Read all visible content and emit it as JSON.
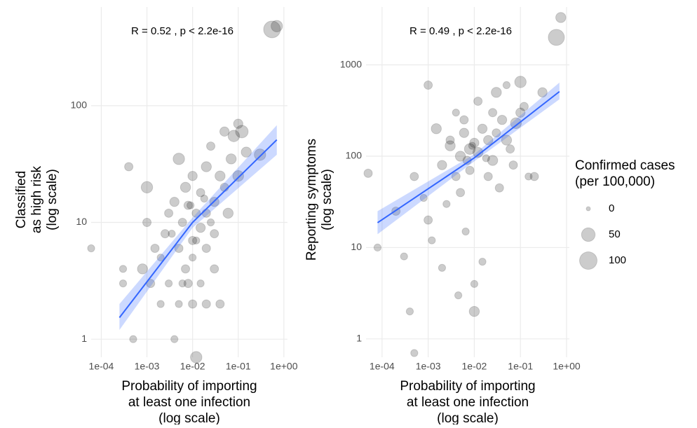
{
  "chart_data": [
    {
      "type": "scatter",
      "annotation": "R = 0.52 , p < 2.2e-16",
      "xlabel": [
        "Probability of importing",
        "at least one infection",
        "(log scale)"
      ],
      "ylabel": [
        "Classified",
        "as high risk",
        "(log scale)"
      ],
      "xscale": "log",
      "yscale": "log",
      "grid": true,
      "xlim": [
        6e-05,
        1.2
      ],
      "ylim": [
        0.7,
        700
      ],
      "xticks": [
        {
          "value": 0.0001,
          "label": "1e-04"
        },
        {
          "value": 0.001,
          "label": "1e-03"
        },
        {
          "value": 0.01,
          "label": "1e-02"
        },
        {
          "value": 0.1,
          "label": "1e-01"
        },
        {
          "value": 1,
          "label": "1e+00"
        }
      ],
      "yticks": [
        1,
        10,
        100
      ],
      "color": "#000000",
      "fit": {
        "color": "#3366ff",
        "x": [
          0.00025,
          0.01,
          0.7
        ],
        "y": [
          1.53,
          10,
          51
        ],
        "lower": [
          1.2,
          9,
          38
        ],
        "upper": [
          2.0,
          11,
          68
        ]
      },
      "x": [
        6e-05,
        0.0003,
        0.0004,
        0.0003,
        0.0005,
        0.0008,
        0.001,
        0.001,
        0.0012,
        0.0015,
        0.002,
        0.002,
        0.0025,
        0.003,
        0.003,
        0.004,
        0.004,
        0.005,
        0.005,
        0.005,
        0.006,
        0.007,
        0.007,
        0.008,
        0.008,
        0.01,
        0.01,
        0.01,
        0.01,
        0.012,
        0.012,
        0.015,
        0.015,
        0.015,
        0.02,
        0.02,
        0.02,
        0.02,
        0.025,
        0.03,
        0.03,
        0.03,
        0.04,
        0.05,
        0.05,
        0.06,
        0.07,
        0.08,
        0.1,
        0.1,
        0.12,
        0.15,
        0.3,
        0.55,
        0.7,
        0.012,
        0.006,
        0.009,
        0.025,
        0.04,
        0.018,
        0.0035
      ],
      "y": [
        6,
        3,
        30,
        4,
        1,
        4,
        20,
        10,
        3,
        6,
        5,
        2,
        8,
        12,
        3,
        15,
        1,
        35,
        6,
        2,
        10,
        20,
        4,
        14,
        3,
        25,
        7,
        5,
        2,
        12,
        0.7,
        18,
        9,
        3,
        30,
        12,
        6,
        2,
        45,
        15,
        8,
        4,
        25,
        20,
        60,
        12,
        35,
        55,
        70,
        25,
        60,
        40,
        38,
        450,
        480,
        7,
        3,
        14,
        10,
        2,
        16,
        8
      ],
      "sizes": [
        5,
        5,
        10,
        5,
        5,
        20,
        30,
        10,
        10,
        10,
        5,
        5,
        10,
        10,
        5,
        15,
        5,
        30,
        10,
        5,
        10,
        20,
        10,
        10,
        10,
        15,
        10,
        5,
        10,
        10,
        30,
        10,
        15,
        5,
        20,
        10,
        10,
        10,
        10,
        15,
        10,
        10,
        20,
        10,
        15,
        20,
        20,
        30,
        15,
        25,
        40,
        20,
        30,
        90,
        30,
        5,
        5,
        5,
        5,
        10,
        5,
        5
      ]
    },
    {
      "type": "scatter",
      "annotation": "R = 0.49 , p < 2.2e-16",
      "xlabel": [
        "Probability of importing",
        "at least one infection",
        "(log scale)"
      ],
      "ylabel": [
        "Reporting symptoms",
        "(log scale)"
      ],
      "xscale": "log",
      "yscale": "log",
      "grid": true,
      "xlim": [
        4.5e-05,
        1.15
      ],
      "ylim": [
        0.63,
        4300
      ],
      "xticks": [
        {
          "value": 0.0001,
          "label": "1e-04"
        },
        {
          "value": 0.001,
          "label": "1e-03"
        },
        {
          "value": 0.01,
          "label": "1e-02"
        },
        {
          "value": 0.1,
          "label": "1e-01"
        },
        {
          "value": 1,
          "label": "1e+00"
        }
      ],
      "yticks": [
        1,
        10,
        100,
        1000
      ],
      "color": "#000000",
      "fit": {
        "color": "#3366ff",
        "x": [
          8e-05,
          0.01,
          0.7
        ],
        "y": [
          18.7,
          96,
          510
        ],
        "lower": [
          14,
          88,
          420
        ],
        "upper": [
          25,
          105,
          640
        ]
      },
      "x": [
        5e-05,
        8e-05,
        0.0002,
        0.0003,
        0.0004,
        0.0005,
        0.0008,
        0.001,
        0.001,
        0.0012,
        0.0015,
        0.002,
        0.002,
        0.003,
        0.003,
        0.004,
        0.004,
        0.005,
        0.005,
        0.006,
        0.006,
        0.007,
        0.008,
        0.008,
        0.01,
        0.01,
        0.01,
        0.012,
        0.012,
        0.015,
        0.015,
        0.02,
        0.02,
        0.025,
        0.025,
        0.03,
        0.03,
        0.04,
        0.05,
        0.05,
        0.06,
        0.07,
        0.08,
        0.1,
        0.1,
        0.12,
        0.15,
        0.2,
        0.3,
        0.6,
        0.75,
        0.0045,
        0.009,
        0.018,
        0.035,
        0.0025,
        0.0065,
        0.0005
      ],
      "y": [
        65,
        10,
        25,
        8,
        2,
        60,
        35,
        20,
        600,
        12,
        200,
        6,
        80,
        130,
        150,
        60,
        300,
        100,
        40,
        180,
        250,
        90,
        120,
        70,
        140,
        4,
        2,
        400,
        110,
        200,
        7,
        150,
        60,
        300,
        90,
        500,
        180,
        250,
        600,
        150,
        120,
        80,
        230,
        650,
        300,
        350,
        60,
        60,
        500,
        2000,
        3300,
        3,
        130,
        95,
        45,
        30,
        15,
        0.7
      ],
      "sizes": [
        10,
        5,
        10,
        5,
        5,
        10,
        5,
        10,
        10,
        5,
        20,
        5,
        15,
        20,
        10,
        10,
        5,
        20,
        10,
        15,
        10,
        10,
        25,
        10,
        15,
        5,
        20,
        10,
        20,
        15,
        5,
        15,
        10,
        10,
        20,
        20,
        10,
        15,
        5,
        20,
        10,
        10,
        25,
        30,
        15,
        10,
        5,
        10,
        15,
        80,
        20,
        5,
        5,
        5,
        10,
        5,
        5,
        5
      ],
      "legend": {
        "title": [
          "Confirmed cases",
          "(per 100,000)"
        ],
        "sizes": [
          0,
          50,
          100
        ]
      }
    }
  ]
}
